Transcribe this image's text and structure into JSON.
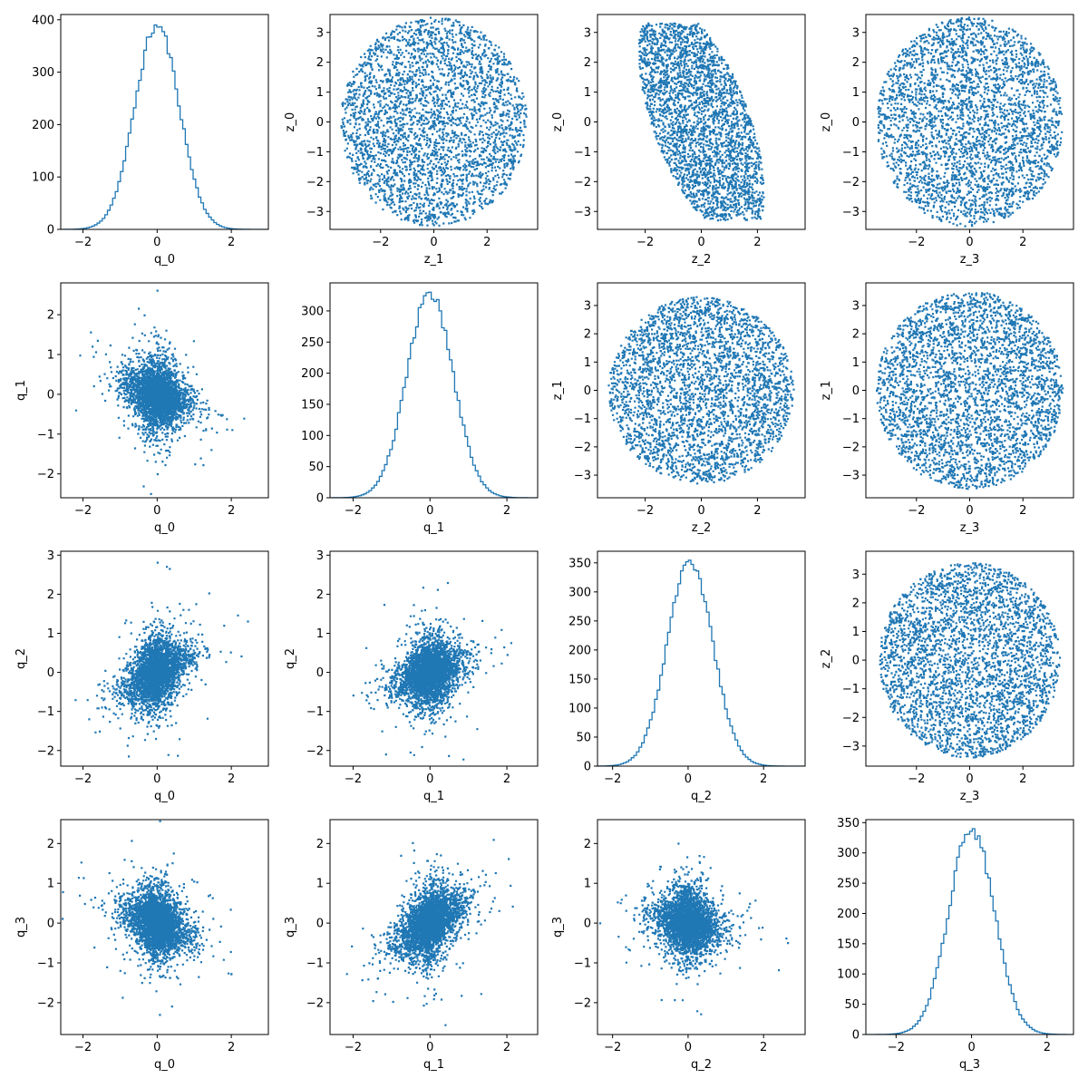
{
  "figure": {
    "layout": "4x4 pair-plot grid",
    "accent_color": "#1f77b4"
  },
  "chart_data": [
    {
      "row": 0,
      "col": 0,
      "type": "histogram",
      "xlabel": "q_0",
      "ylabel": "",
      "xlim": [
        -2.6,
        3.0
      ],
      "ylim": [
        0,
        410
      ],
      "xticks": [
        -2,
        0,
        2
      ],
      "yticks": [
        0,
        100,
        200,
        300,
        400
      ],
      "peak": {
        "x": 0.0,
        "count": 390
      },
      "spread": 0.6,
      "seed": 11
    },
    {
      "row": 0,
      "col": 1,
      "type": "scatter",
      "xlabel": "z_1",
      "ylabel": "z_0",
      "xlim": [
        -3.9,
        3.9
      ],
      "ylim": [
        -3.6,
        3.6
      ],
      "xticks": [
        -2,
        0,
        2
      ],
      "yticks": [
        -3,
        -2,
        -1,
        0,
        1,
        2,
        3
      ],
      "cloud": "disk",
      "radius": 3.5,
      "seed": 21
    },
    {
      "row": 0,
      "col": 2,
      "type": "scatter",
      "xlabel": "z_2",
      "ylabel": "z_0",
      "xlim": [
        -3.7,
        3.7
      ],
      "ylim": [
        -3.6,
        3.6
      ],
      "xticks": [
        -2,
        0,
        2
      ],
      "yticks": [
        -3,
        -2,
        -1,
        0,
        1,
        2,
        3
      ],
      "cloud": "tilted",
      "radius": 3.2,
      "correlation": -0.35,
      "seed": 31
    },
    {
      "row": 0,
      "col": 3,
      "type": "scatter",
      "xlabel": "z_3",
      "ylabel": "z_0",
      "xlim": [
        -3.9,
        3.9
      ],
      "ylim": [
        -3.6,
        3.6
      ],
      "xticks": [
        -2,
        0,
        2
      ],
      "yticks": [
        -3,
        -2,
        -1,
        0,
        1,
        2,
        3
      ],
      "cloud": "disk",
      "radius": 3.5,
      "seed": 41
    },
    {
      "row": 1,
      "col": 0,
      "type": "scatter",
      "xlabel": "q_0",
      "ylabel": "q_1",
      "xlim": [
        -2.6,
        3.0
      ],
      "ylim": [
        -2.6,
        2.8
      ],
      "xticks": [
        -2,
        0,
        2
      ],
      "yticks": [
        -2,
        -1,
        0,
        1,
        2
      ],
      "cloud": "star",
      "spread": 0.5,
      "correlation": -0.3,
      "seed": 51
    },
    {
      "row": 1,
      "col": 1,
      "type": "histogram",
      "xlabel": "q_1",
      "ylabel": "",
      "xlim": [
        -2.6,
        2.8
      ],
      "ylim": [
        0,
        345
      ],
      "xticks": [
        -2,
        0,
        2
      ],
      "yticks": [
        0,
        50,
        100,
        150,
        200,
        250,
        300
      ],
      "peak": {
        "x": 0.0,
        "count": 330
      },
      "spread": 0.6,
      "seed": 61
    },
    {
      "row": 1,
      "col": 2,
      "type": "scatter",
      "xlabel": "z_2",
      "ylabel": "z_1",
      "xlim": [
        -3.7,
        3.7
      ],
      "ylim": [
        -3.8,
        3.8
      ],
      "xticks": [
        -2,
        0,
        2
      ],
      "yticks": [
        -3,
        -2,
        -1,
        0,
        1,
        2,
        3
      ],
      "cloud": "disk",
      "radius": 3.3,
      "seed": 71
    },
    {
      "row": 1,
      "col": 3,
      "type": "scatter",
      "xlabel": "z_3",
      "ylabel": "z_1",
      "xlim": [
        -3.9,
        3.9
      ],
      "ylim": [
        -3.8,
        3.8
      ],
      "xticks": [
        -2,
        0,
        2
      ],
      "yticks": [
        -3,
        -2,
        -1,
        0,
        1,
        2,
        3
      ],
      "cloud": "disk",
      "radius": 3.5,
      "seed": 81
    },
    {
      "row": 2,
      "col": 0,
      "type": "scatter",
      "xlabel": "q_0",
      "ylabel": "q_2",
      "xlim": [
        -2.6,
        3.0
      ],
      "ylim": [
        -2.4,
        3.1
      ],
      "xticks": [
        -2,
        0,
        2
      ],
      "yticks": [
        -2,
        -1,
        0,
        1,
        2,
        3
      ],
      "cloud": "star",
      "spread": 0.5,
      "correlation": 0.45,
      "seed": 91
    },
    {
      "row": 2,
      "col": 1,
      "type": "scatter",
      "xlabel": "q_1",
      "ylabel": "q_2",
      "xlim": [
        -2.6,
        2.8
      ],
      "ylim": [
        -2.4,
        3.1
      ],
      "xticks": [
        -2,
        0,
        2
      ],
      "yticks": [
        -2,
        -1,
        0,
        1,
        2,
        3
      ],
      "cloud": "star",
      "spread": 0.5,
      "correlation": 0.3,
      "seed": 101
    },
    {
      "row": 2,
      "col": 2,
      "type": "histogram",
      "xlabel": "q_2",
      "ylabel": "",
      "xlim": [
        -2.4,
        3.1
      ],
      "ylim": [
        0,
        370
      ],
      "xticks": [
        -2,
        0,
        2
      ],
      "yticks": [
        0,
        50,
        100,
        150,
        200,
        250,
        300,
        350
      ],
      "peak": {
        "x": 0.05,
        "count": 355
      },
      "spread": 0.6,
      "seed": 111
    },
    {
      "row": 2,
      "col": 3,
      "type": "scatter",
      "xlabel": "z_3",
      "ylabel": "z_2",
      "xlim": [
        -3.9,
        3.9
      ],
      "ylim": [
        -3.7,
        3.8
      ],
      "xticks": [
        -2,
        0,
        2
      ],
      "yticks": [
        -3,
        -2,
        -1,
        0,
        1,
        2,
        3
      ],
      "cloud": "disk",
      "radius": 3.4,
      "seed": 121
    },
    {
      "row": 3,
      "col": 0,
      "type": "scatter",
      "xlabel": "q_0",
      "ylabel": "q_3",
      "xlim": [
        -2.6,
        3.0
      ],
      "ylim": [
        -2.8,
        2.6
      ],
      "xticks": [
        -2,
        0,
        2
      ],
      "yticks": [
        -2,
        -1,
        0,
        1,
        2
      ],
      "cloud": "star",
      "spread": 0.5,
      "correlation": -0.3,
      "seed": 131
    },
    {
      "row": 3,
      "col": 1,
      "type": "scatter",
      "xlabel": "q_1",
      "ylabel": "q_3",
      "xlim": [
        -2.6,
        2.8
      ],
      "ylim": [
        -2.8,
        2.6
      ],
      "xticks": [
        -2,
        0,
        2
      ],
      "yticks": [
        -2,
        -1,
        0,
        1,
        2
      ],
      "cloud": "star",
      "spread": 0.5,
      "correlation": 0.5,
      "seed": 141
    },
    {
      "row": 3,
      "col": 2,
      "type": "scatter",
      "xlabel": "q_2",
      "ylabel": "q_3",
      "xlim": [
        -2.4,
        3.1
      ],
      "ylim": [
        -2.8,
        2.6
      ],
      "xticks": [
        -2,
        0,
        2
      ],
      "yticks": [
        -2,
        -1,
        0,
        1,
        2
      ],
      "cloud": "star",
      "spread": 0.5,
      "correlation": -0.2,
      "seed": 151
    },
    {
      "row": 3,
      "col": 3,
      "type": "histogram",
      "xlabel": "q_3",
      "ylabel": "",
      "xlim": [
        -2.8,
        2.7
      ],
      "ylim": [
        0,
        355
      ],
      "xticks": [
        -2,
        0,
        2
      ],
      "yticks": [
        0,
        50,
        100,
        150,
        200,
        250,
        300,
        350
      ],
      "peak": {
        "x": 0.0,
        "count": 340
      },
      "spread": 0.6,
      "seed": 161
    }
  ]
}
